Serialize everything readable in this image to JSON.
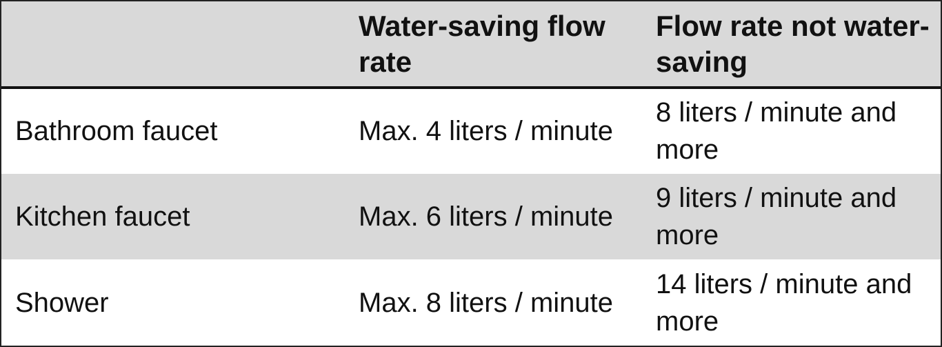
{
  "table": {
    "headers": [
      "",
      "Water-saving flow rate",
      "Flow rate not water-saving"
    ],
    "rows": [
      {
        "fixture": "Bathroom faucet",
        "water_saving": "Max. 4 liters / minute",
        "not_water_saving": "8 liters / minute and more"
      },
      {
        "fixture": "Kitchen faucet",
        "water_saving": "Max. 6 liters / minute",
        "not_water_saving": "9 liters / minute and more"
      },
      {
        "fixture": "Shower",
        "water_saving": "Max. 8 liters / minute",
        "not_water_saving": "14 liters / minute and more"
      }
    ]
  },
  "colors": {
    "header_bg": "#d9d9d9",
    "alt_row_bg": "#d9d9d9",
    "border": "#111111"
  }
}
